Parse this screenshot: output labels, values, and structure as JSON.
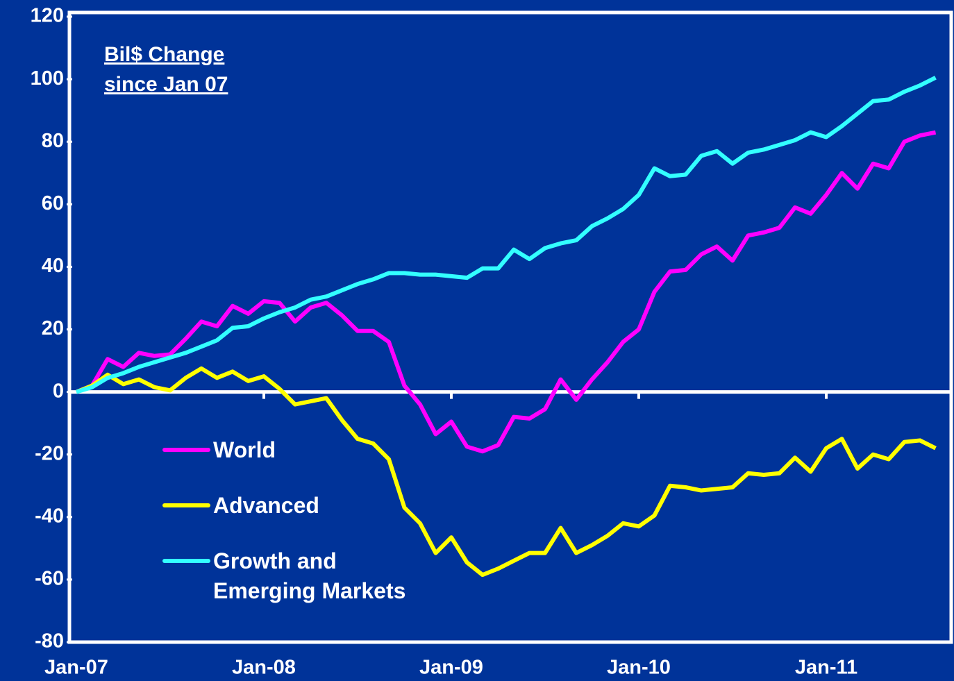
{
  "chart_data": {
    "type": "line",
    "annotation": "Bil$ Change since Jan 07",
    "categories": [
      "Jan-07",
      null,
      null,
      null,
      null,
      null,
      null,
      null,
      null,
      null,
      null,
      null,
      "Jan-08",
      null,
      null,
      null,
      null,
      null,
      null,
      null,
      null,
      null,
      null,
      null,
      "Jan-09",
      null,
      null,
      null,
      null,
      null,
      null,
      null,
      null,
      null,
      null,
      null,
      "Jan-10",
      null,
      null,
      null,
      null,
      null,
      null,
      null,
      null,
      null,
      null,
      null,
      "Jan-11",
      null,
      null,
      null,
      null,
      null,
      null,
      null
    ],
    "series": [
      {
        "name": "World",
        "color": "#ff00ff",
        "values": [
          0,
          2,
          10.5,
          8,
          12.5,
          11.5,
          12,
          17,
          22.5,
          21,
          27.5,
          25,
          29,
          28.5,
          22.5,
          27,
          28.5,
          24.5,
          19.5,
          19.5,
          16,
          2,
          -4,
          -13.5,
          -9.5,
          -17.5,
          -19,
          -17,
          -8,
          -8.5,
          -5.5,
          4,
          -2.5,
          4,
          9.5,
          16,
          20,
          32,
          38.5,
          39,
          44,
          46.5,
          42,
          50,
          51,
          52.5,
          59,
          57,
          63,
          70,
          65,
          73,
          71.5,
          80,
          82,
          83
        ]
      },
      {
        "name": "Advanced",
        "color": "#ffff00",
        "values": [
          0,
          2,
          5.5,
          2.5,
          4,
          1.5,
          0.5,
          4.5,
          7.5,
          4.5,
          6.5,
          3.5,
          5,
          1,
          -4,
          -3,
          -2,
          -9,
          -15,
          -16.5,
          -21.5,
          -37,
          -42,
          -51.5,
          -46.5,
          -54.5,
          -58.5,
          -56.5,
          -54,
          -51.5,
          -51.5,
          -43.5,
          -51.5,
          -49,
          -46,
          -42,
          -43,
          -39.5,
          -30,
          -30.5,
          -31.5,
          -31,
          -30.5,
          -26,
          -26.5,
          -26,
          -21,
          -25.5,
          -18,
          -15,
          -24.5,
          -20,
          -21.5,
          -16,
          -15.5,
          -18
        ]
      },
      {
        "name": "Growth and Emerging Markets",
        "color": "#33ffff",
        "values": [
          0,
          1.5,
          4.5,
          6,
          8,
          9.5,
          11,
          12.5,
          14.5,
          16.5,
          20.5,
          21,
          23.5,
          25.5,
          27,
          29.5,
          30.5,
          32.5,
          34.5,
          36,
          38,
          38,
          37.5,
          37.5,
          37,
          36.5,
          39.5,
          39.5,
          45.5,
          42.5,
          46,
          47.5,
          48.5,
          53,
          55.5,
          58.5,
          63,
          71.5,
          69,
          69.5,
          75.5,
          77,
          73,
          76.5,
          77.5,
          79,
          80.5,
          83,
          81.5,
          85,
          89,
          93,
          93.5,
          96,
          98,
          100.5
        ]
      }
    ],
    "ylim": [
      -80,
      120
    ],
    "yticks": [
      -80,
      -60,
      -40,
      -20,
      0,
      20,
      40,
      60,
      80,
      100,
      120
    ]
  }
}
